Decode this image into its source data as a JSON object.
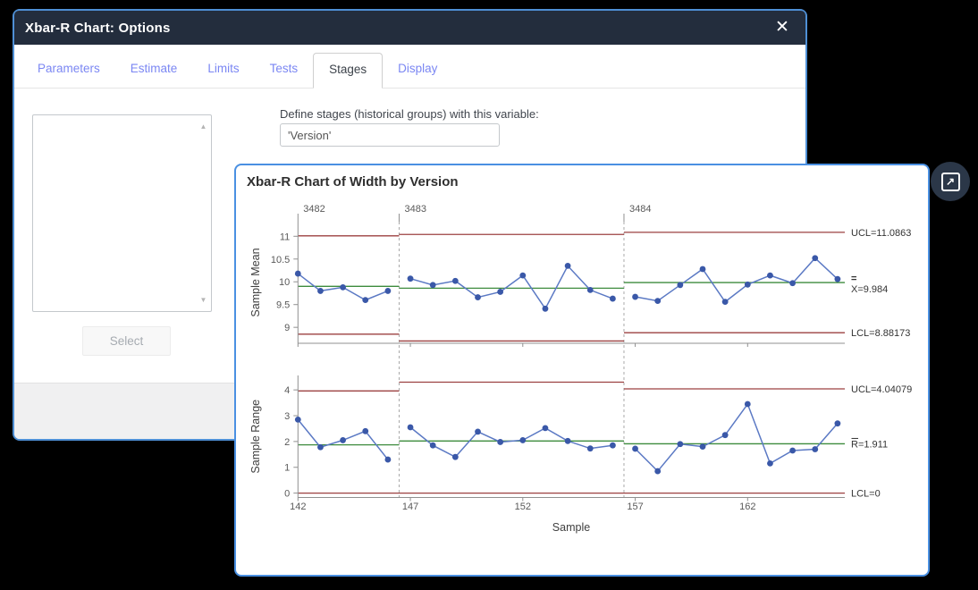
{
  "colors": {
    "titlebar": "#232d3d",
    "dialog_border": "#4e8fd5",
    "chart_border": "#4a90e2",
    "tab_blue": "#7b87f3",
    "limit_line": "#9c4141",
    "center_line": "#3d8b3d",
    "data_line": "#5b79c4",
    "marker": "#3a58a8",
    "dashed_boundary": "#a8a8a8",
    "axis": "#909090",
    "tick_text": "#595959"
  },
  "icons": {
    "close": "✕",
    "expand": "↗",
    "scroll_up": "▲",
    "scroll_down": "▼"
  },
  "dialog": {
    "title": "Xbar-R Chart: Options",
    "tabs": [
      {
        "label": "Parameters",
        "active": false
      },
      {
        "label": "Estimate",
        "active": false
      },
      {
        "label": "Limits",
        "active": false
      },
      {
        "label": "Tests",
        "active": false
      },
      {
        "label": "Stages",
        "active": true
      },
      {
        "label": "Display",
        "active": false
      }
    ],
    "stages_tab": {
      "define_label": "Define stages (historical groups) with this variable:",
      "variable_value": "'Version'",
      "select_label": "Select"
    }
  },
  "chart_window": {
    "title": "Xbar-R Chart of Width by Version"
  },
  "chart_data": {
    "type": "line",
    "subtype": "xbar-r-control-chart",
    "title": "Xbar-R Chart of Width by Version",
    "xlabel": "Sample",
    "x_first": 142,
    "x_last": 166,
    "x_ticks": [
      142,
      147,
      152,
      157,
      162
    ],
    "stages": [
      {
        "label": "3482",
        "from": 142,
        "to": 146
      },
      {
        "label": "3483",
        "from": 147,
        "to": 156
      },
      {
        "label": "3484",
        "from": 157,
        "to": 166
      }
    ],
    "panels": [
      {
        "ylabel": "Sample Mean",
        "y_ticks": [
          9,
          9.5,
          10,
          10.5,
          11
        ],
        "ylim": [
          8.65,
          11.32
        ],
        "values": [
          10.18,
          9.8,
          9.88,
          9.6,
          9.8,
          10.07,
          9.93,
          10.02,
          9.66,
          9.78,
          10.14,
          9.41,
          10.35,
          9.82,
          9.63,
          9.67,
          9.58,
          9.93,
          10.28,
          9.56,
          9.94,
          10.14,
          9.97,
          10.52,
          10.06
        ],
        "stage_limits": [
          {
            "ucl": 11.01,
            "center": 9.9,
            "lcl": 8.85
          },
          {
            "ucl": 11.04,
            "center": 9.86,
            "lcl": 8.7
          },
          {
            "ucl": 11.0863,
            "center": 9.984,
            "lcl": 8.88173
          }
        ],
        "labels": {
          "ucl": "UCL=11.0863",
          "center": "X=9.984",
          "center_mark": "double-bar",
          "lcl": "LCL=8.88173"
        }
      },
      {
        "ylabel": "Sample Range",
        "y_ticks": [
          0,
          1,
          2,
          3,
          4
        ],
        "ylim": [
          -0.17,
          4.56
        ],
        "values": [
          2.85,
          1.78,
          2.05,
          2.4,
          1.3,
          2.55,
          1.85,
          1.4,
          2.38,
          1.98,
          2.05,
          2.52,
          2.02,
          1.73,
          1.85,
          1.72,
          0.85,
          1.9,
          1.8,
          2.25,
          3.45,
          1.15,
          1.65,
          1.7,
          2.7
        ],
        "stage_limits": [
          {
            "ucl": 3.96,
            "center": 1.87,
            "lcl": 0
          },
          {
            "ucl": 4.3,
            "center": 2.02,
            "lcl": 0
          },
          {
            "ucl": 4.04079,
            "center": 1.911,
            "lcl": 0
          }
        ],
        "labels": {
          "ucl": "UCL=4.04079",
          "center": "R=1.911",
          "center_mark": "bar",
          "lcl": "LCL=0"
        }
      }
    ],
    "legend_position": "right-of-lines",
    "grid": false
  }
}
